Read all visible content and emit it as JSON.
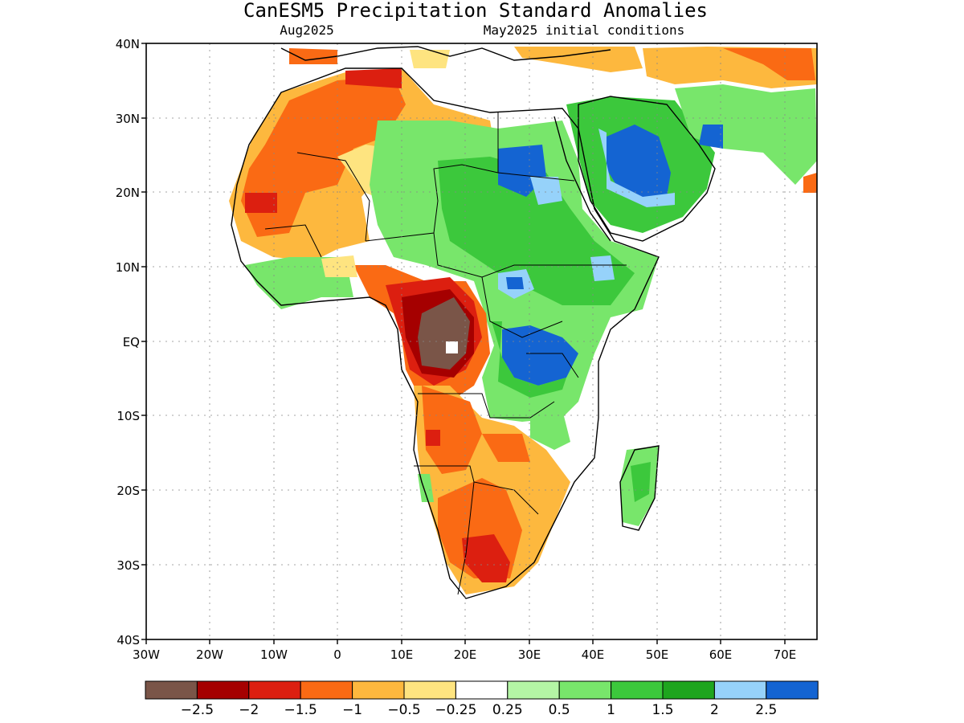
{
  "title": "CanESM5 Precipitation Standard Anomalies",
  "subtitle_left": "Aug2025",
  "subtitle_right": "May2025 initial conditions",
  "lat_labels": [
    "40N",
    "30N",
    "20N",
    "10N",
    "EQ",
    "10S",
    "20S",
    "30S",
    "40S"
  ],
  "lon_labels": [
    "30W",
    "20W",
    "10W",
    "0",
    "10E",
    "20E",
    "30E",
    "40E",
    "50E",
    "60E",
    "70E"
  ],
  "colorbar": {
    "colors": [
      "#7a5548",
      "#a50000",
      "#dc1f10",
      "#fa6a14",
      "#fdb83e",
      "#fee480",
      "#ffffff",
      "#b4f5a5",
      "#78e66b",
      "#3cc83c",
      "#1ea51e",
      "#96d2fa",
      "#1464d2"
    ],
    "labels": [
      "-2.5",
      "-2",
      "-1.5",
      "-1",
      "-0.5",
      "-0.25",
      "0.25",
      "0.5",
      "1",
      "1.5",
      "2",
      "2.5"
    ]
  }
}
